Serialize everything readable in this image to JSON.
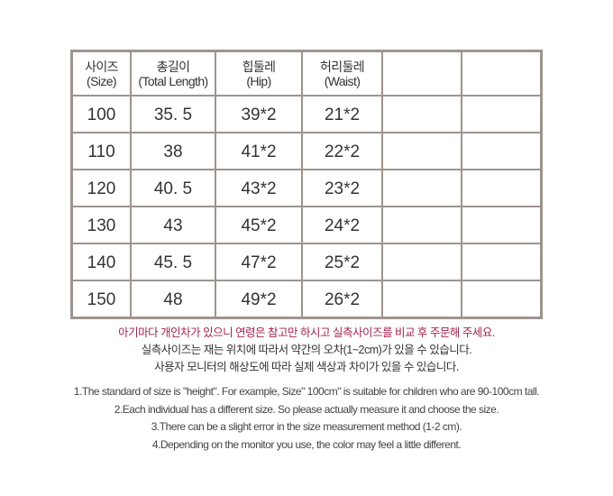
{
  "table": {
    "headers": [
      [
        "사이즈",
        "(Size)"
      ],
      [
        "총길이",
        "(Total Length)"
      ],
      [
        "힙둘레",
        "(Hip)"
      ],
      [
        "허리둘레",
        "(Waist)"
      ],
      [
        "",
        ""
      ],
      [
        "",
        ""
      ]
    ],
    "rows": [
      [
        "100",
        "35. 5",
        "39*2",
        "21*2",
        "",
        ""
      ],
      [
        "110",
        "38",
        "41*2",
        "22*2",
        "",
        ""
      ],
      [
        "120",
        "40. 5",
        "43*2",
        "23*2",
        "",
        ""
      ],
      [
        "130",
        "43",
        "45*2",
        "24*2",
        "",
        ""
      ],
      [
        "140",
        "45. 5",
        "47*2",
        "25*2",
        "",
        ""
      ],
      [
        "150",
        "48",
        "49*2",
        "26*2",
        "",
        ""
      ]
    ]
  },
  "notes_ko": [
    "아기마다 개인차가 있으니 연령은 참고만 하시고 실측사이즈를 비교 후 주문해 주세요.",
    "실측사이즈는 재는 위치에 따라서 약간의  오차(1~2cm)가 있을 수 있습니다.",
    "사용자 모니터의 해상도에 따라 실제 색상과 차이가 있을 수 있습니다."
  ],
  "notes_en": [
    "1.The standard of size is \"height\". For example,  Size\" 100cm\" is suitable for children who are 90-100cm tall.",
    "2.Each individual has a different size. So please actually measure it and choose the size.",
    "3.There can be a slight error in the size measurement method (1-2 cm).",
    "4.Depending on the monitor you use, the color may feel a little different."
  ],
  "colors": {
    "highlight": "#a5234d",
    "border": "#9e948e"
  }
}
